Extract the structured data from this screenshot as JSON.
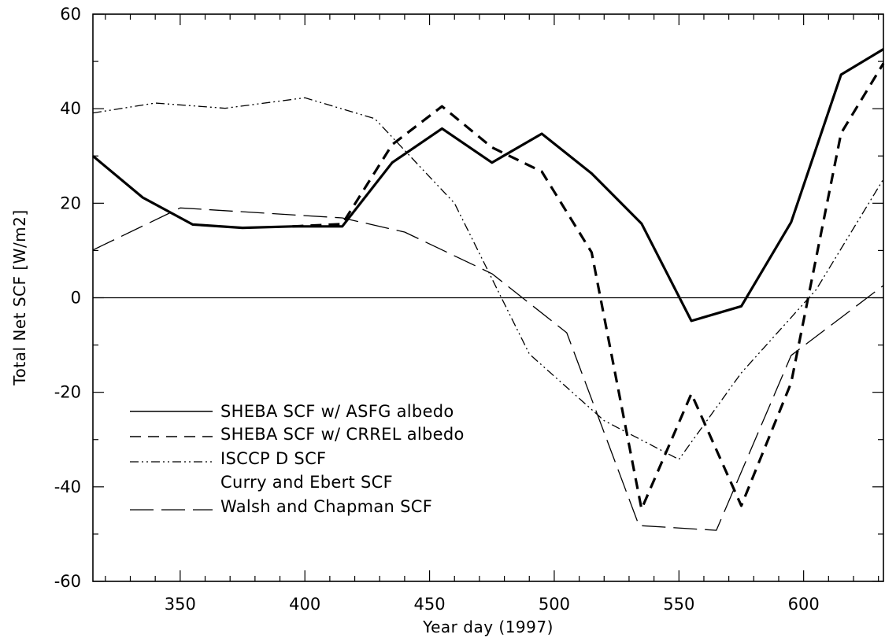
{
  "chart_data": {
    "type": "line",
    "title": "",
    "xlabel": "Year day (1997)",
    "ylabel": "Total Net SCF [W/m2]",
    "xlim": [
      315,
      632
    ],
    "ylim": [
      -60,
      60
    ],
    "xticks": [
      350,
      400,
      450,
      500,
      550,
      600
    ],
    "xtick_labels": [
      "350",
      "400",
      "450",
      "500",
      "550",
      "600"
    ],
    "yticks": [
      -60,
      -40,
      -20,
      0,
      20,
      40,
      60
    ],
    "ytick_labels": [
      "-60",
      "-40",
      "-20",
      "0",
      "20",
      "40",
      "60"
    ],
    "grid": false,
    "zero_line": true,
    "legend_position": "lower-left",
    "series": [
      {
        "name": "SHEBA SCF w/ ASFG albedo",
        "style": "solid-thick",
        "x": [
          315,
          335,
          355,
          375,
          395,
          415,
          435,
          455,
          475,
          495,
          515,
          535,
          555,
          575,
          595,
          615,
          632
        ],
        "y": [
          30,
          21.2,
          15.5,
          14.8,
          15.1,
          15.1,
          28.6,
          35.8,
          28.6,
          34.7,
          26.3,
          15.7,
          -4.9,
          -1.8,
          16,
          47.2,
          52.6
        ]
      },
      {
        "name": "SHEBA SCF w/ CRREL albedo",
        "style": "dashed-thick",
        "x": [
          395,
          415,
          435,
          455,
          475,
          495,
          515,
          535,
          555,
          575,
          595,
          615,
          632
        ],
        "y": [
          15.1,
          15.6,
          32.4,
          40.5,
          31.8,
          26.7,
          9.6,
          -44.7,
          -20.3,
          -44,
          -18,
          34.8,
          49.6
        ]
      },
      {
        "name": "ISCCP D SCF",
        "style": "dash-dot",
        "x": [
          315,
          340,
          368,
          400,
          428,
          460,
          490,
          520,
          550,
          575,
          605,
          632
        ],
        "y": [
          39.1,
          41.2,
          40.1,
          42.3,
          37.9,
          20,
          -11.9,
          -26,
          -34.2,
          -15.9,
          1.7,
          25.1
        ]
      },
      {
        "name": "Curry and Ebert SCF",
        "style": "none",
        "x": [],
        "y": []
      },
      {
        "name": "Walsh and Chapman SCF",
        "style": "long-dash",
        "x": [
          315,
          350,
          415,
          440,
          475,
          505,
          534,
          565,
          595,
          632
        ],
        "y": [
          10.1,
          19,
          16.9,
          13.9,
          5.1,
          -7.4,
          -48.2,
          -49.2,
          -12.2,
          2.6
        ]
      }
    ]
  }
}
